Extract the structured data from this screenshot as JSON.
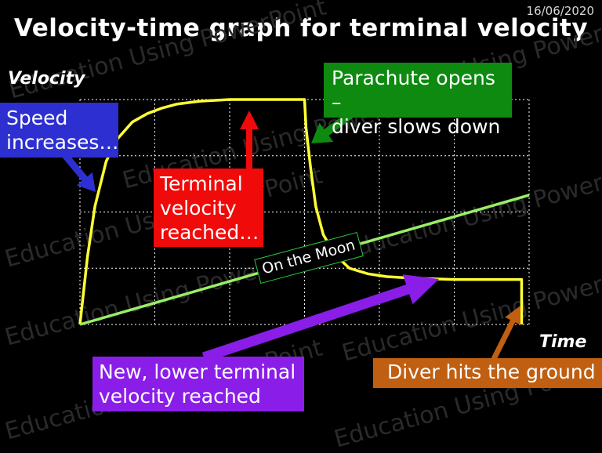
{
  "header": {
    "date": "16/06/2020",
    "title": "Velocity-time graph for terminal velocity"
  },
  "axes": {
    "y_label": "Velocity",
    "x_label": "Time"
  },
  "annotations": {
    "speed_increases": [
      "Speed",
      "increases…"
    ],
    "parachute_opens": [
      "Parachute opens –",
      "diver slows down"
    ],
    "terminal_velocity": [
      "Terminal",
      "velocity",
      "reached…"
    ],
    "on_the_moon": "On the Moon",
    "new_lower_terminal": [
      "New, lower terminal",
      "velocity reached"
    ],
    "diver_hits_ground": "Diver hits the ground"
  },
  "watermark": "Education Using PowerPoint",
  "colors": {
    "background": "#000000",
    "grid": "#ffffff",
    "earth_curve": "#ffff33",
    "moon_line": "#99ee66",
    "blue": "#2d2fd0",
    "green": "#0e8a10",
    "red": "#f00a0a",
    "purple": "#8a1ee8",
    "orange": "#c05f12"
  },
  "chart_data": {
    "type": "line",
    "xlabel": "Time",
    "ylabel": "Velocity",
    "xlim": [
      0,
      6
    ],
    "ylim": [
      0,
      4
    ],
    "grid": true,
    "series": [
      {
        "x": [
          0,
          0.1,
          0.2,
          0.35,
          0.5,
          0.7,
          0.9,
          1.1,
          1.3,
          1.6,
          2.0,
          2.5,
          3.0,
          3.02,
          3.08,
          3.15,
          3.25,
          3.4,
          3.6,
          3.85,
          4.1,
          4.5,
          5.0,
          5.5,
          5.9,
          5.9
        ],
        "y": [
          0,
          1.2,
          2.1,
          2.9,
          3.3,
          3.6,
          3.75,
          3.85,
          3.92,
          3.97,
          4.0,
          4.0,
          4.0,
          3.5,
          2.8,
          2.1,
          1.6,
          1.25,
          1.0,
          0.9,
          0.85,
          0.82,
          0.8,
          0.8,
          0.8,
          0
        ]
      },
      {
        "x": [
          0,
          6
        ],
        "y": [
          0,
          2.3
        ]
      }
    ]
  }
}
